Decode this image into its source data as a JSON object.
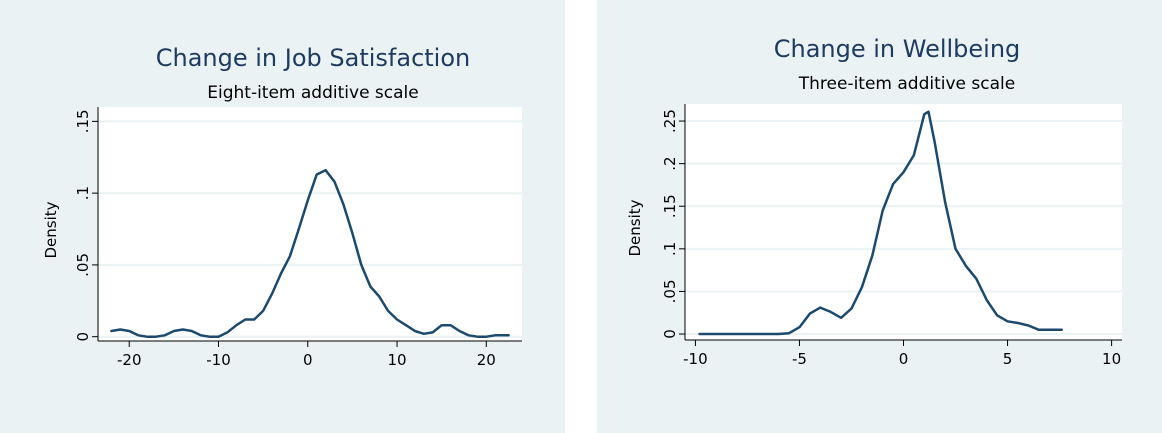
{
  "colors": {
    "panel_bg": "#eaf2f3",
    "plot_bg": "#ffffff",
    "line": "#1c4a6e",
    "title": "#1e3a5f"
  },
  "chart_data": [
    {
      "type": "line",
      "title": "Change in Job Satisfaction",
      "subtitle": "Eight-item additive scale",
      "xlabel": "",
      "ylabel": "Density",
      "xlim": [
        -23.5,
        24
      ],
      "ylim": [
        -0.003,
        0.16
      ],
      "xticks": [
        "-20",
        "-10",
        "0",
        "10",
        "20"
      ],
      "yticks": [
        "0",
        ".05",
        ".1",
        ".15"
      ],
      "grid": true,
      "series": [
        {
          "x": [
            -22,
            -21,
            -20,
            -19,
            -18,
            -17,
            -16,
            -15,
            -14,
            -13,
            -12,
            -11,
            -10,
            -9,
            -8,
            -7,
            -6,
            -5,
            -4,
            -3,
            -2,
            -1,
            0,
            1,
            2,
            3,
            4,
            5,
            6,
            7,
            8,
            9,
            10,
            11,
            12,
            13,
            14,
            15,
            16,
            17,
            18,
            19,
            20,
            21,
            22.5
          ],
          "y": [
            0.004,
            0.005,
            0.004,
            0.001,
            0.0,
            0.0,
            0.001,
            0.004,
            0.005,
            0.004,
            0.001,
            0.0,
            0.0,
            0.003,
            0.008,
            0.012,
            0.012,
            0.018,
            0.03,
            0.044,
            0.056,
            0.075,
            0.095,
            0.113,
            0.116,
            0.108,
            0.092,
            0.072,
            0.05,
            0.035,
            0.028,
            0.018,
            0.012,
            0.008,
            0.004,
            0.002,
            0.003,
            0.008,
            0.008,
            0.004,
            0.001,
            0.0,
            0.0,
            0.001,
            0.001
          ]
        }
      ]
    },
    {
      "type": "line",
      "title": "Change in Wellbeing",
      "subtitle": "Three-item additive scale",
      "xlabel": "",
      "ylabel": "Density",
      "xlim": [
        -10.5,
        10.5
      ],
      "ylim": [
        -0.007,
        0.27
      ],
      "xticks": [
        "-10",
        "-5",
        "0",
        "5",
        "10"
      ],
      "yticks": [
        "0",
        ".05",
        ".1",
        ".15",
        ".2",
        ".25"
      ],
      "grid": true,
      "series": [
        {
          "x": [
            -9.8,
            -9,
            -8,
            -7,
            -6,
            -5.5,
            -5,
            -4.5,
            -4,
            -3.5,
            -3,
            -2.5,
            -2,
            -1.5,
            -1,
            -0.5,
            0,
            0.5,
            1,
            1.2,
            1.5,
            2,
            2.5,
            3,
            3.5,
            4,
            4.5,
            5,
            5.5,
            6,
            6.5,
            7,
            7.6
          ],
          "y": [
            0.0,
            0.0,
            0.0,
            0.0,
            0.0,
            0.001,
            0.008,
            0.024,
            0.031,
            0.026,
            0.019,
            0.03,
            0.055,
            0.092,
            0.145,
            0.176,
            0.19,
            0.21,
            0.258,
            0.261,
            0.225,
            0.155,
            0.1,
            0.08,
            0.065,
            0.04,
            0.022,
            0.015,
            0.013,
            0.01,
            0.005,
            0.005,
            0.005
          ]
        }
      ]
    }
  ]
}
